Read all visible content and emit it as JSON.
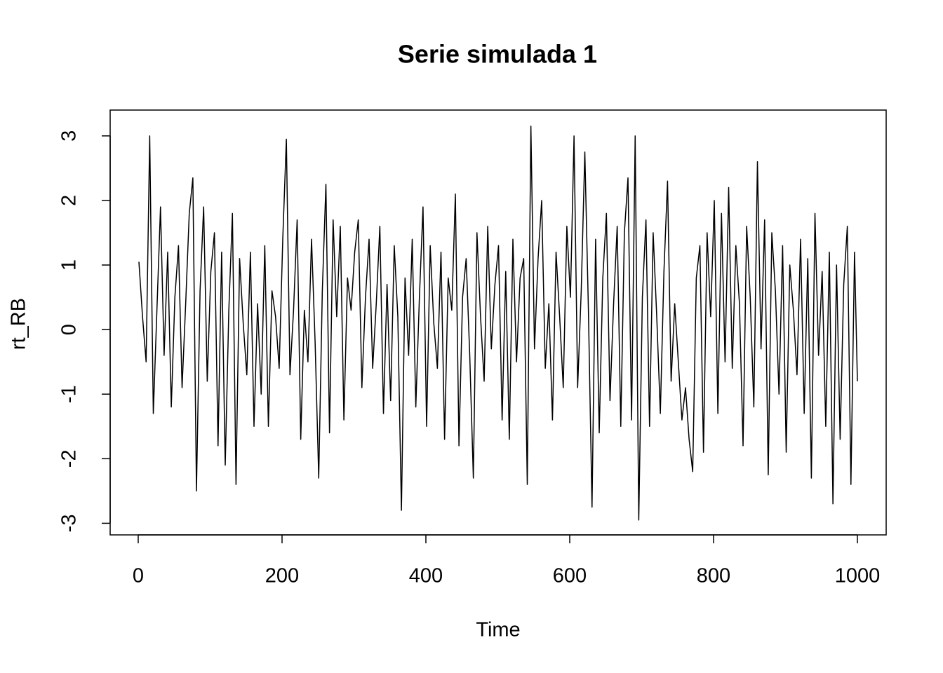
{
  "chart_data": {
    "type": "line",
    "title": "Serie simulada 1",
    "x_label": "Time",
    "y_label": "rt_RB",
    "x": [
      1,
      6,
      11,
      16,
      21,
      26,
      31,
      36,
      41,
      46,
      51,
      56,
      61,
      66,
      71,
      76,
      81,
      86,
      91,
      96,
      101,
      106,
      111,
      116,
      121,
      126,
      131,
      136,
      141,
      146,
      151,
      156,
      161,
      166,
      171,
      176,
      181,
      186,
      191,
      196,
      201,
      206,
      211,
      216,
      221,
      226,
      231,
      236,
      241,
      246,
      251,
      256,
      261,
      266,
      271,
      276,
      281,
      286,
      291,
      296,
      301,
      306,
      311,
      316,
      321,
      326,
      331,
      336,
      341,
      346,
      351,
      356,
      361,
      366,
      371,
      376,
      381,
      386,
      391,
      396,
      401,
      406,
      411,
      416,
      421,
      426,
      431,
      436,
      441,
      446,
      451,
      456,
      461,
      466,
      471,
      476,
      481,
      486,
      491,
      496,
      501,
      506,
      511,
      516,
      521,
      526,
      531,
      536,
      541,
      546,
      551,
      556,
      561,
      566,
      571,
      576,
      581,
      586,
      591,
      596,
      601,
      606,
      611,
      616,
      621,
      626,
      631,
      636,
      641,
      646,
      651,
      656,
      661,
      666,
      671,
      676,
      681,
      686,
      691,
      696,
      701,
      706,
      711,
      716,
      721,
      726,
      731,
      736,
      741,
      746,
      751,
      756,
      761,
      766,
      771,
      776,
      781,
      786,
      791,
      796,
      801,
      806,
      811,
      816,
      821,
      826,
      831,
      836,
      841,
      846,
      851,
      856,
      861,
      866,
      871,
      876,
      881,
      886,
      891,
      896,
      901,
      906,
      911,
      916,
      921,
      926,
      931,
      936,
      941,
      946,
      951,
      956,
      961,
      966,
      971,
      976,
      981,
      986,
      991,
      996,
      1000
    ],
    "series": [
      {
        "name": "rt_RB",
        "color": "#000000",
        "values": [
          1.05,
          0.2,
          -0.5,
          3.0,
          -1.3,
          0.3,
          1.9,
          -0.4,
          1.2,
          -1.2,
          0.5,
          1.3,
          -0.9,
          0.4,
          1.8,
          2.35,
          -2.5,
          0.6,
          1.9,
          -0.8,
          0.9,
          1.5,
          -1.8,
          1.2,
          -2.1,
          0.3,
          1.8,
          -2.4,
          1.1,
          0.1,
          -0.7,
          1.2,
          -1.5,
          0.4,
          -1.0,
          1.3,
          -1.5,
          0.6,
          0.2,
          -0.6,
          1.4,
          2.95,
          -0.7,
          0.3,
          1.7,
          -1.7,
          0.3,
          -0.5,
          1.4,
          -0.2,
          -2.3,
          0.6,
          2.25,
          -1.6,
          1.7,
          0.2,
          1.6,
          -1.4,
          0.8,
          0.3,
          1.2,
          1.7,
          -0.9,
          0.5,
          1.4,
          -0.6,
          0.4,
          1.6,
          -1.3,
          0.7,
          -1.1,
          1.3,
          0.2,
          -2.8,
          0.8,
          -0.4,
          1.4,
          -1.2,
          0.5,
          1.9,
          -1.5,
          1.3,
          0.1,
          -0.6,
          1.2,
          -1.7,
          0.8,
          0.3,
          2.1,
          -1.8,
          0.5,
          1.1,
          -0.4,
          -2.3,
          1.5,
          0.2,
          -0.8,
          1.6,
          -0.3,
          0.7,
          1.3,
          -1.4,
          0.9,
          -1.7,
          1.4,
          -0.5,
          0.8,
          1.1,
          -2.4,
          3.15,
          -0.3,
          1.1,
          2.0,
          -0.6,
          0.4,
          -1.4,
          1.2,
          0.2,
          -0.9,
          1.6,
          0.5,
          3.0,
          -0.9,
          0.6,
          2.75,
          0.3,
          -2.75,
          1.4,
          -1.6,
          0.8,
          1.8,
          -1.1,
          0.4,
          1.6,
          -1.5,
          1.5,
          2.35,
          -1.4,
          3.0,
          -2.95,
          0.5,
          1.7,
          -1.5,
          1.5,
          0.2,
          -1.3,
          0.9,
          2.3,
          -0.8,
          0.4,
          -0.5,
          -1.4,
          -0.9,
          -1.7,
          -2.2,
          0.8,
          1.3,
          -1.9,
          1.5,
          0.2,
          2.0,
          -1.3,
          1.8,
          -0.5,
          2.2,
          -0.6,
          1.3,
          0.4,
          -1.8,
          1.6,
          0.5,
          -1.2,
          2.6,
          -0.3,
          1.7,
          -2.25,
          1.5,
          0.6,
          -1.0,
          1.3,
          -1.9,
          1.0,
          0.3,
          -0.7,
          1.4,
          -1.3,
          1.1,
          -2.3,
          1.8,
          -0.4,
          0.9,
          -1.5,
          1.2,
          -2.7,
          1.0,
          -1.7,
          0.7,
          1.6,
          -2.4,
          1.2,
          -0.8
        ]
      }
    ],
    "xlim": [
      -39,
      1040
    ],
    "ylim": [
      -3.18,
      3.4
    ],
    "xticks": [
      0,
      200,
      400,
      600,
      800,
      1000
    ],
    "yticks": [
      -3,
      -2,
      -1,
      0,
      1,
      2,
      3
    ]
  }
}
